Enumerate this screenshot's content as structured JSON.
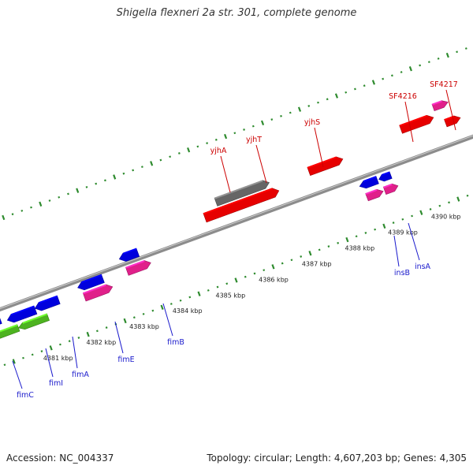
{
  "title": "Shigella flexneri 2a str. 301, complete genome",
  "footer": {
    "accession": "Accession: NC_004337",
    "summary": "Topology: circular; Length: 4,607,203 bp; Genes: 4,305"
  },
  "colors": {
    "background": "#ffffff",
    "backbone": "#8c8c8c",
    "tick": "#2e8b2e",
    "forward_label": "#cc0000",
    "reverse_label": "#1a1acc",
    "red_gene": "#e60000",
    "gray_gene": "#666666",
    "blue_gene": "#0000dd",
    "pink_gene": "#e0208a",
    "green_gene": "#4db320"
  },
  "ruler": {
    "unit": "kbp",
    "labels": [
      "4381 kbp",
      "4382 kbp",
      "4383 kbp",
      "4384 kbp",
      "4385 kbp",
      "4386 kbp",
      "4387 kbp",
      "4388 kbp",
      "4389 kbp",
      "4390 kbp"
    ]
  },
  "genes": [
    {
      "name": "yjhA",
      "strand": "forward",
      "color": "red"
    },
    {
      "name": "yjhT",
      "strand": "forward",
      "color": "red"
    },
    {
      "name": "yjhS",
      "strand": "forward",
      "color": "red"
    },
    {
      "name": "SF4216",
      "strand": "forward",
      "color": "red"
    },
    {
      "name": "SF4217",
      "strand": "forward",
      "color": "pink"
    },
    {
      "name": "fimC",
      "strand": "reverse",
      "color": "blue"
    },
    {
      "name": "fimI",
      "strand": "reverse",
      "color": "green"
    },
    {
      "name": "fimA",
      "strand": "reverse",
      "color": "blue"
    },
    {
      "name": "fimE",
      "strand": "reverse",
      "color": "pink"
    },
    {
      "name": "fimB",
      "strand": "reverse",
      "color": "blue"
    },
    {
      "name": "insB",
      "strand": "reverse",
      "color": "pink"
    },
    {
      "name": "insA",
      "strand": "reverse",
      "color": "pink"
    }
  ]
}
